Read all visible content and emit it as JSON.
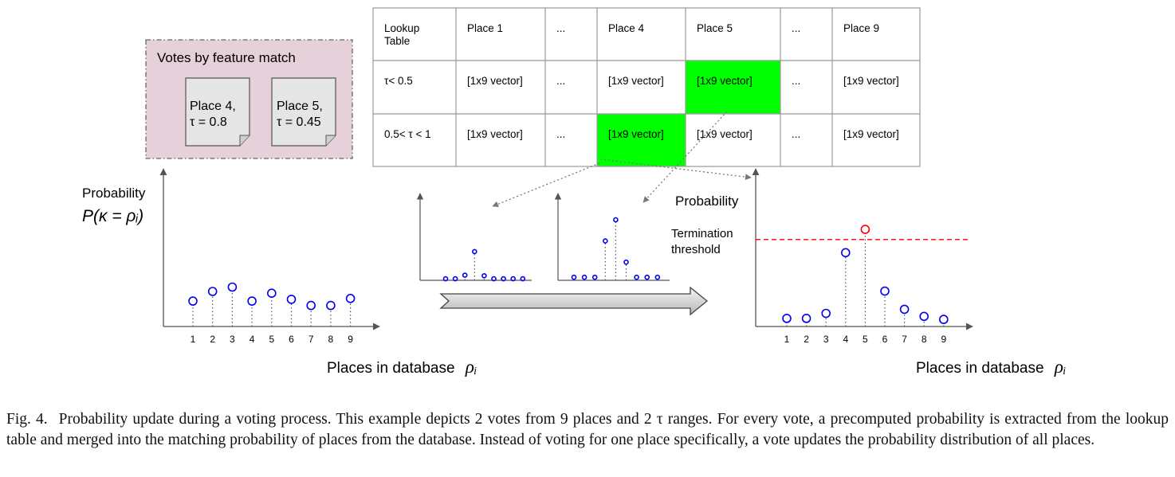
{
  "votes_box": {
    "title": "Votes by feature match",
    "cards": [
      {
        "line1": "Place 4,",
        "line2": "τ = 0.8"
      },
      {
        "line1": "Place 5,",
        "line2": "τ = 0.45"
      }
    ],
    "fill": "#e6d0da"
  },
  "lookup_table": {
    "header": [
      "Lookup\nTable",
      "Place 1",
      "...",
      "Place 4",
      "Place 5",
      "...",
      "Place 9"
    ],
    "rows": [
      {
        "label": "τ< 0.5",
        "cells": [
          "[1x9 vector]",
          "...",
          "[1x9 vector]",
          "[1x9 vector]",
          "...",
          "[1x9 vector]"
        ],
        "highlight_index": 2
      },
      {
        "label": "0.5< τ < 1",
        "cells": [
          "[1x9 vector]",
          "...",
          "[1x9 vector]",
          "[1x9 vector]",
          "...",
          "[1x9 vector]"
        ],
        "highlight_index": 1
      }
    ],
    "highlight_color": "#00ff00"
  },
  "left_plot": {
    "ylabel_line1": "Probability",
    "ylabel_math": "P(κ = ρᵢ)",
    "xlabel": "Places in database",
    "xlabel_symbol": "ρᵢ",
    "x_ticks": [
      "1",
      "2",
      "3",
      "4",
      "5",
      "6",
      "7",
      "8",
      "9"
    ],
    "values": [
      0.29,
      0.4,
      0.45,
      0.29,
      0.38,
      0.31,
      0.24,
      0.24,
      0.32
    ],
    "marker_color": "#0000ee"
  },
  "mini_plot_1": {
    "values": [
      0.05,
      0.05,
      0.17,
      0.95,
      0.15,
      0.05,
      0.05,
      0.05,
      0.05
    ]
  },
  "mini_plot_2": {
    "values": [
      0.05,
      0.05,
      0.05,
      0.65,
      1.0,
      0.3,
      0.05,
      0.05,
      0.05
    ]
  },
  "right_plot": {
    "ylabel": "Probability",
    "threshold_label_line1": "Termination",
    "threshold_label_line2": "threshold",
    "xlabel": "Places in database",
    "xlabel_symbol": "ρᵢ",
    "x_ticks": [
      "1",
      "2",
      "3",
      "4",
      "5",
      "6",
      "7",
      "8",
      "9"
    ],
    "values": [
      0.08,
      0.08,
      0.13,
      0.73,
      0.96,
      0.35,
      0.17,
      0.1,
      0.07
    ],
    "threshold": 0.86,
    "marker_color": "#0000ee",
    "winner_color": "#ff0000",
    "threshold_color": "#ff0000"
  },
  "caption": {
    "label": "Fig. 4.",
    "text": "Probability update during a voting process. This example depicts 2 votes from 9 places and 2 τ ranges. For every vote, a precomputed probability is extracted from the lookup table and merged into the matching probability of places from the database. Instead of voting for one place specifically, a vote updates the probability distribution of all places."
  }
}
